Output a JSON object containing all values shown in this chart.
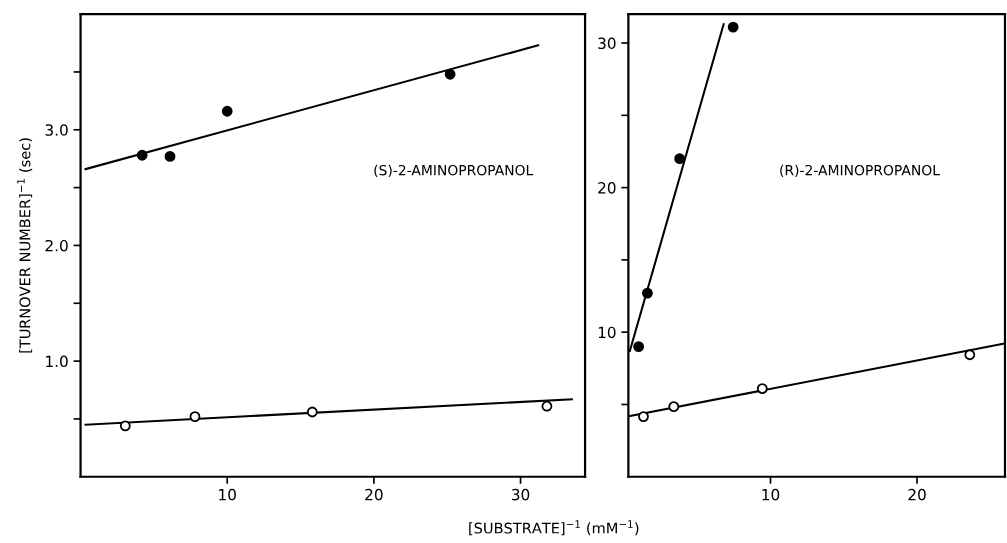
{
  "chart_data": [
    {
      "type": "scatter",
      "ylabel": "[TURNOVER NUMBER]$^{−1}$ (sec)",
      "xlabel": "[SUBSTRATE]$^{−1}$ (mM$^{−1}$)",
      "annotations": [
        "(S)-2-AMINOPROPANOL"
      ],
      "xlim": [
        0,
        34.4
      ],
      "xticks": [
        10,
        20,
        30
      ],
      "ylim": [
        0,
        4.0
      ],
      "yticks": [
        {
          "value": 0.5,
          "label": null
        },
        {
          "value": 1.0,
          "label": "1.0"
        },
        {
          "value": 1.5,
          "label": null
        },
        {
          "value": 2.0,
          "label": "2.0"
        },
        {
          "value": 2.5,
          "label": null
        },
        {
          "value": 3.0,
          "label": "3.0"
        },
        {
          "value": 3.5,
          "label": null
        }
      ],
      "grid": false,
      "series": [
        {
          "color": "#000000",
          "marker": "circle",
          "x": [
            4.2,
            6.1,
            10.0,
            25.2
          ],
          "values": [
            2.78,
            2.77,
            3.16,
            3.48
          ]
        },
        {
          "color": "#ffffff",
          "marker": "circle",
          "x": [
            3.05,
            7.8,
            15.8,
            31.8
          ],
          "values": [
            0.44,
            0.52,
            0.56,
            0.61
          ]
        },
        {
          "type": "line",
          "color": "#000000",
          "x": [
            0.34,
            31.2
          ],
          "values": [
            2.66,
            3.73
          ]
        },
        {
          "type": "line",
          "color": "#000000",
          "x": [
            0.34,
            33.5
          ],
          "values": [
            0.45,
            0.67
          ]
        }
      ]
    },
    {
      "type": "scatter",
      "annotations": [
        "(R)-2-AMINOPROPANOL"
      ],
      "xlim": [
        0.3,
        26.0
      ],
      "xticks": [
        10,
        20
      ],
      "ylim": [
        0,
        32
      ],
      "yticks": [
        {
          "value": 5,
          "label": null
        },
        10,
        {
          "value": 15,
          "label": null
        },
        20,
        {
          "value": 25,
          "label": null
        },
        30
      ],
      "grid": false,
      "series": [
        {
          "color": "#000000",
          "marker": "circle",
          "x": [
            1.0,
            1.6,
            3.8,
            7.45
          ],
          "values": [
            9.0,
            12.7,
            22.0,
            31.1
          ]
        },
        {
          "color": "#ffffff",
          "marker": "circle",
          "x": [
            1.33,
            3.4,
            9.44,
            23.6
          ],
          "values": [
            4.16,
            4.85,
            6.1,
            8.44
          ]
        },
        {
          "type": "line",
          "color": "#000000",
          "x": [
            0.4,
            6.8
          ],
          "values": [
            8.7,
            31.3
          ]
        },
        {
          "type": "line",
          "color": "#000000",
          "x": [
            0.4,
            25.9
          ],
          "values": [
            4.2,
            9.2
          ]
        }
      ]
    }
  ]
}
